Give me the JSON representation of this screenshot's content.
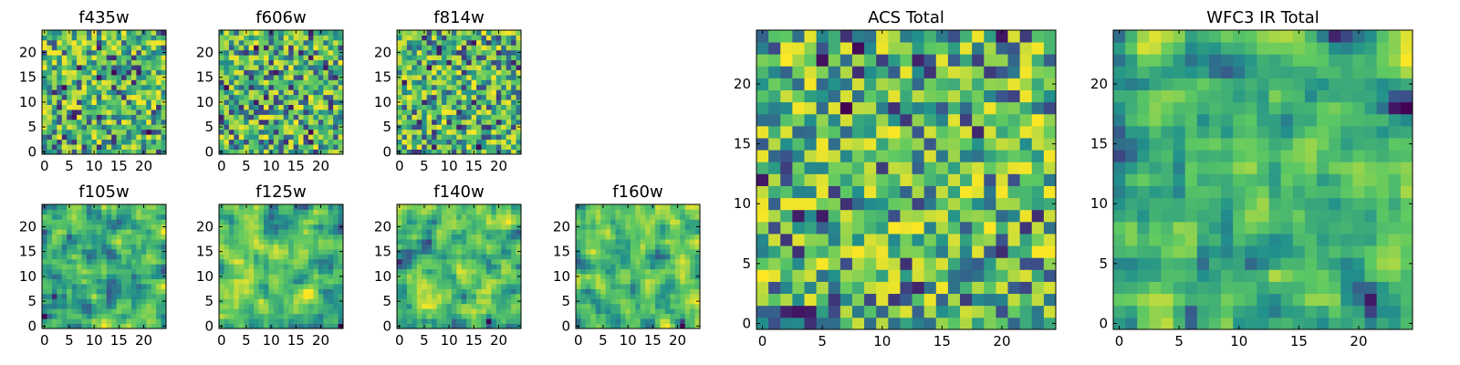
{
  "chart_data": [
    {
      "type": "heatmap",
      "title": "f435w",
      "size": 25,
      "seed": 11,
      "smooth": 0,
      "xticks": [
        0,
        5,
        10,
        15,
        20
      ],
      "yticks": [
        0,
        5,
        10,
        15,
        20
      ],
      "xlim": [
        -0.5,
        24.5
      ],
      "ylim": [
        -0.5,
        24.5
      ],
      "colormap": "viridis-like",
      "values": "25x25 grid of normalized pixel intensities (procedurally approximated)"
    },
    {
      "type": "heatmap",
      "title": "f606w",
      "size": 25,
      "seed": 23,
      "smooth": 0,
      "xticks": [
        0,
        5,
        10,
        15,
        20
      ],
      "yticks": [
        0,
        5,
        10,
        15,
        20
      ],
      "xlim": [
        -0.5,
        24.5
      ],
      "ylim": [
        -0.5,
        24.5
      ],
      "colormap": "viridis-like",
      "values": "25x25 grid of normalized pixel intensities (procedurally approximated)"
    },
    {
      "type": "heatmap",
      "title": "f814w",
      "size": 25,
      "seed": 37,
      "smooth": 0,
      "xticks": [
        0,
        5,
        10,
        15,
        20
      ],
      "yticks": [
        0,
        5,
        10,
        15,
        20
      ],
      "xlim": [
        -0.5,
        24.5
      ],
      "ylim": [
        -0.5,
        24.5
      ],
      "colormap": "viridis-like",
      "values": "25x25 grid of normalized pixel intensities (procedurally approximated)"
    },
    {
      "type": "heatmap",
      "title": "f105w",
      "size": 25,
      "seed": 41,
      "smooth": 1,
      "xticks": [
        0,
        5,
        10,
        15,
        20
      ],
      "yticks": [
        0,
        5,
        10,
        15,
        20
      ],
      "xlim": [
        -0.5,
        24.5
      ],
      "ylim": [
        -0.5,
        24.5
      ],
      "colormap": "viridis-like",
      "values": "25x25 grid of normalized pixel intensities (procedurally approximated)"
    },
    {
      "type": "heatmap",
      "title": "f125w",
      "size": 25,
      "seed": 53,
      "smooth": 1,
      "xticks": [
        0,
        5,
        10,
        15,
        20
      ],
      "yticks": [
        0,
        5,
        10,
        15,
        20
      ],
      "xlim": [
        -0.5,
        24.5
      ],
      "ylim": [
        -0.5,
        24.5
      ],
      "colormap": "viridis-like",
      "values": "25x25 grid of normalized pixel intensities (procedurally approximated)"
    },
    {
      "type": "heatmap",
      "title": "f140w",
      "size": 25,
      "seed": 67,
      "smooth": 1,
      "xticks": [
        0,
        5,
        10,
        15,
        20
      ],
      "yticks": [
        0,
        5,
        10,
        15,
        20
      ],
      "xlim": [
        -0.5,
        24.5
      ],
      "ylim": [
        -0.5,
        24.5
      ],
      "colormap": "viridis-like",
      "values": "25x25 grid of normalized pixel intensities (procedurally approximated)"
    },
    {
      "type": "heatmap",
      "title": "f160w",
      "size": 25,
      "seed": 79,
      "smooth": 1,
      "xticks": [
        0,
        5,
        10,
        15,
        20
      ],
      "yticks": [
        0,
        5,
        10,
        15,
        20
      ],
      "xlim": [
        -0.5,
        24.5
      ],
      "ylim": [
        -0.5,
        24.5
      ],
      "colormap": "viridis-like",
      "values": "25x25 grid of normalized pixel intensities (procedurally approximated)"
    },
    {
      "type": "heatmap",
      "title": "ACS Total",
      "size": 25,
      "seed": 97,
      "smooth": 0,
      "xticks": [
        0,
        5,
        10,
        15,
        20
      ],
      "yticks": [
        0,
        5,
        10,
        15,
        20
      ],
      "xlim": [
        -0.5,
        24.5
      ],
      "ylim": [
        -0.5,
        24.5
      ],
      "colormap": "viridis-like",
      "values": "25x25 grid of normalized pixel intensities (procedurally approximated)"
    },
    {
      "type": "heatmap",
      "title": "WFC3 IR Total",
      "size": 25,
      "seed": 113,
      "smooth": 1,
      "xticks": [
        0,
        5,
        10,
        15,
        20
      ],
      "yticks": [
        0,
        5,
        10,
        15,
        20
      ],
      "xlim": [
        -0.5,
        24.5
      ],
      "ylim": [
        -0.5,
        24.5
      ],
      "colormap": "viridis-like",
      "values": "25x25 grid of normalized pixel intensities (procedurally approximated)"
    }
  ]
}
